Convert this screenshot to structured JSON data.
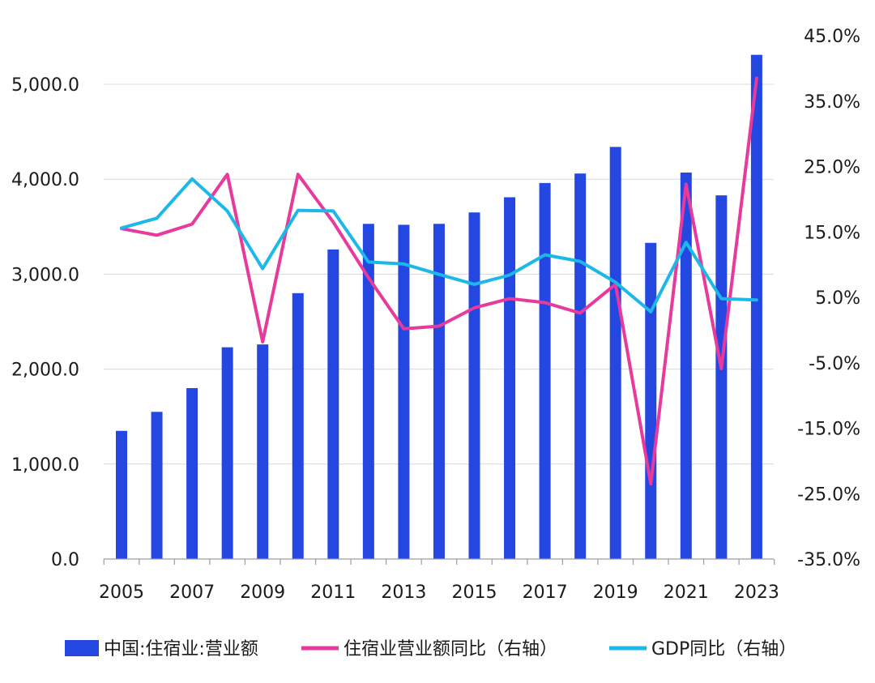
{
  "chart_data": {
    "type": "bar+line",
    "categories": [
      "2005",
      "2006",
      "2007",
      "2008",
      "2009",
      "2010",
      "2011",
      "2012",
      "2013",
      "2014",
      "2015",
      "2016",
      "2017",
      "2018",
      "2019",
      "2020",
      "2021",
      "2022",
      "2023"
    ],
    "x_tick_labels": [
      "2005",
      "2007",
      "2009",
      "2011",
      "2013",
      "2015",
      "2017",
      "2019",
      "2021",
      "2023"
    ],
    "series": [
      {
        "name": "中国:住宿业:营业额",
        "type": "bar",
        "axis": "left",
        "color": "#2347e0",
        "values": [
          1350,
          1550,
          1800,
          2230,
          2260,
          2800,
          3260,
          3530,
          3520,
          3530,
          3650,
          3810,
          3960,
          4060,
          4340,
          3330,
          4070,
          3830,
          5310
        ]
      },
      {
        "name": "住宿业营业额同比（右轴）",
        "type": "line",
        "axis": "right",
        "color": "#e8399c",
        "values": [
          15.5,
          14.5,
          16.2,
          23.8,
          -1.8,
          23.8,
          16.5,
          8.0,
          0.2,
          0.6,
          3.4,
          4.8,
          4.2,
          2.6,
          7.0,
          -23.5,
          22.3,
          -5.9,
          38.5
        ]
      },
      {
        "name": "GDP同比（右轴）",
        "type": "line",
        "axis": "right",
        "color": "#1bb8e8",
        "values": [
          15.6,
          17.1,
          23.1,
          18.2,
          9.4,
          18.3,
          18.2,
          10.4,
          10.1,
          8.5,
          7.0,
          8.4,
          11.5,
          10.5,
          7.3,
          2.8,
          13.4,
          4.8,
          4.6
        ]
      }
    ],
    "left_axis": {
      "ylim": [
        0,
        5500
      ],
      "ticks": [
        0,
        1000,
        2000,
        3000,
        4000,
        5000
      ],
      "tick_labels": [
        "0.0",
        "1,000.0",
        "2,000.0",
        "3,000.0",
        "4,000.0",
        "5,000.0"
      ]
    },
    "right_axis": {
      "ylim": [
        -35,
        45
      ],
      "ticks": [
        -35,
        -25,
        -15,
        -5,
        5,
        15,
        25,
        35,
        45
      ],
      "tick_labels": [
        "-35.0%",
        "-25.0%",
        "-15.0%",
        "-5.0%",
        "5.0%",
        "15.0%",
        "25.0%",
        "35.0%",
        "45.0%"
      ]
    },
    "grid": true,
    "legend_position": "bottom"
  }
}
